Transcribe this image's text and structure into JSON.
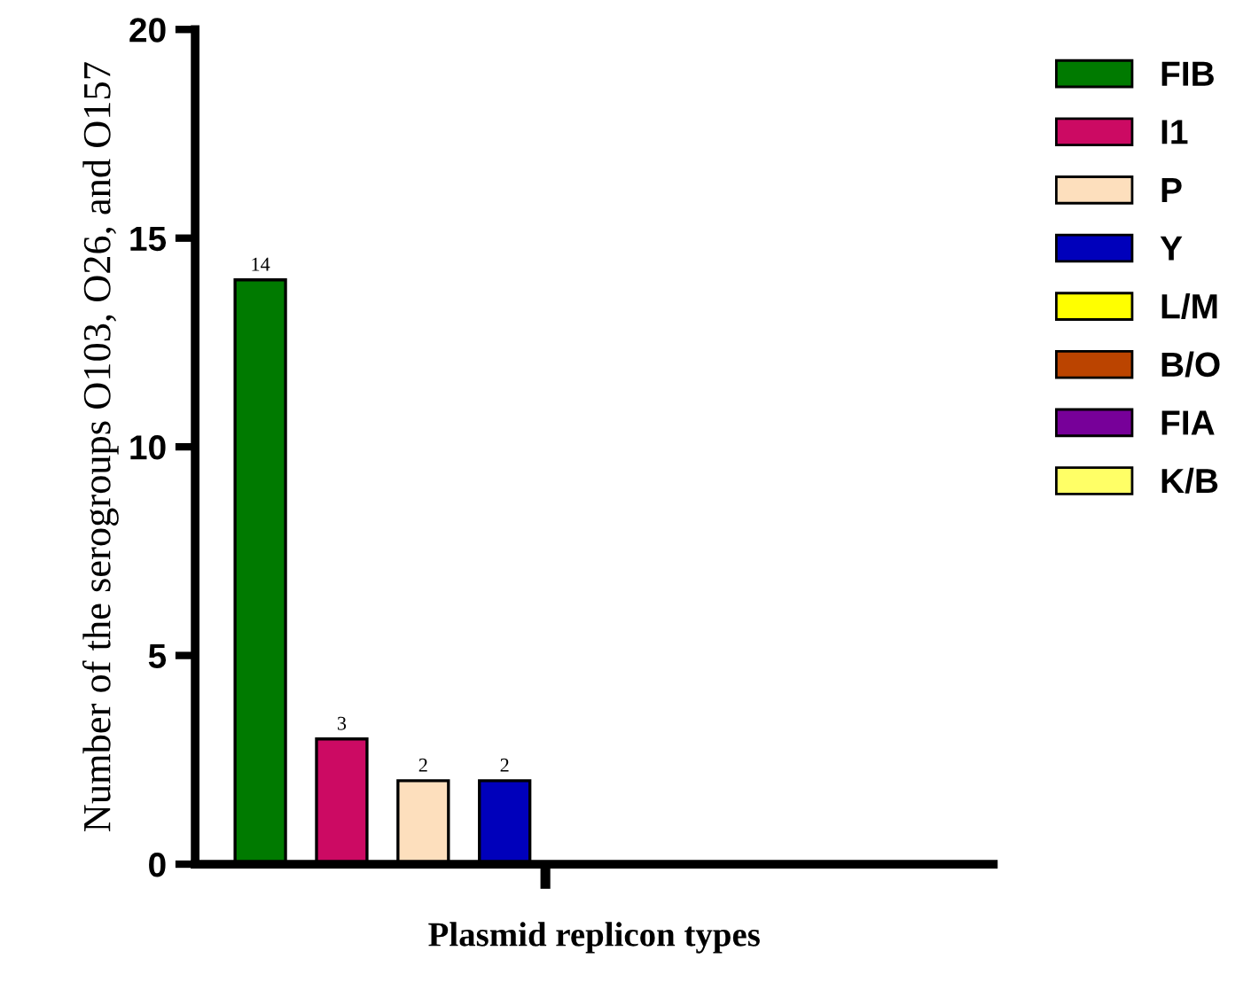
{
  "chart_data": {
    "type": "bar",
    "xlabel": "Plasmid replicon types",
    "ylabel": "Number of the serogroups O103, O26, and O157",
    "categories": [
      null,
      null,
      null,
      null,
      null,
      null,
      null,
      null
    ],
    "series": [
      {
        "name": "FIB",
        "color": "#007a00",
        "values": [
          14,
          null,
          null,
          null,
          null,
          null,
          null,
          null
        ],
        "value_labels": [
          "14",
          null,
          null,
          null,
          null,
          null,
          null,
          null
        ]
      },
      {
        "name": "I1",
        "color": "#cc0a63",
        "values": [
          null,
          3,
          null,
          null,
          null,
          null,
          null,
          null
        ],
        "value_labels": [
          null,
          "3",
          null,
          null,
          null,
          null,
          null,
          null
        ]
      },
      {
        "name": "P",
        "color": "#fddfbd",
        "values": [
          null,
          null,
          2,
          null,
          null,
          null,
          null,
          null
        ],
        "value_labels": [
          null,
          null,
          "2",
          null,
          null,
          null,
          null,
          null
        ]
      },
      {
        "name": "Y",
        "color": "#0000bb",
        "values": [
          null,
          null,
          null,
          2,
          null,
          null,
          null,
          null
        ],
        "value_labels": [
          null,
          null,
          null,
          "2",
          null,
          null,
          null,
          null
        ]
      },
      {
        "name": "L/M",
        "color": "#ffff00",
        "values": [
          null,
          null,
          null,
          null,
          null,
          null,
          null,
          null
        ]
      },
      {
        "name": "B/O",
        "color": "#bb4400",
        "values": [
          null,
          null,
          null,
          null,
          null,
          null,
          null,
          null
        ]
      },
      {
        "name": "FIA",
        "color": "#770099",
        "values": [
          null,
          null,
          null,
          null,
          null,
          null,
          null,
          null
        ]
      },
      {
        "name": "K/B",
        "color": "#ffff66",
        "values": [
          null,
          null,
          null,
          null,
          null,
          null,
          null,
          null
        ]
      }
    ],
    "ylim": [
      0,
      20
    ],
    "yticks": [
      0,
      5,
      10,
      15,
      20
    ],
    "grid": false,
    "legend": "top right"
  }
}
